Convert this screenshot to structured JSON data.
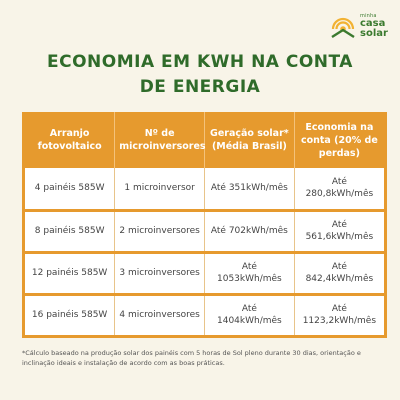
{
  "logo": {
    "small_text": "minha",
    "line1": "casa",
    "line2": "solar"
  },
  "title": {
    "line1": "ECONOMIA EM KWH NA CONTA",
    "line2": "DE ENERGIA"
  },
  "table": {
    "headers": [
      "Arranjo fotovoltaico",
      "Nº de microinversores",
      "Geração solar* (Média Brasil)",
      "Economia na conta (20% de perdas)"
    ],
    "rows": [
      [
        "4 painéis 585W",
        "1 microinversor",
        "Até 351kWh/mês",
        "Até 280,8kWh/mês"
      ],
      [
        "8 painéis 585W",
        "2 microinversores",
        "Até 702kWh/mês",
        "Até 561,6kWh/mês"
      ],
      [
        "12 painéis 585W",
        "3 microinversores",
        "Até 1053kWh/mês",
        "Até 842,4kWh/mês"
      ],
      [
        "16 painéis 585W",
        "4 microinversores",
        "Até 1404kWh/mês",
        "Até 1123,2kWh/mês"
      ]
    ]
  },
  "footnote": "*Cálculo baseado na produção solar dos painéis com 5 horas de Sol pleno durante 30 dias, orientação e inclinação ideais e instalação de acordo com as boas práticas.",
  "colors": {
    "background": "#f8f4e8",
    "title_green": "#2f6b2a",
    "header_orange": "#e69a2e",
    "logo_yellow": "#f2b233",
    "logo_green": "#3b7a2f"
  }
}
